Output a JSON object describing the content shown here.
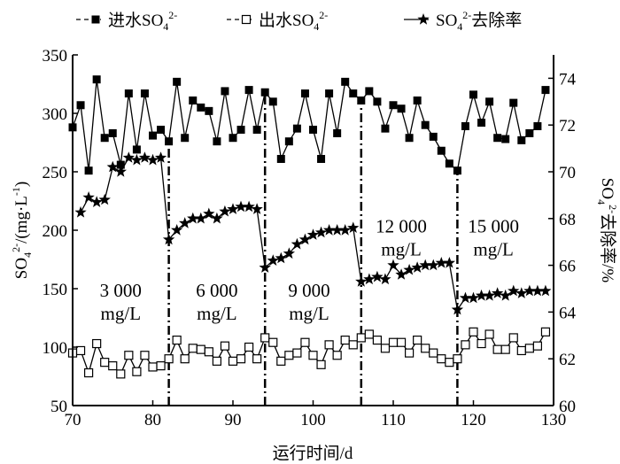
{
  "chart_data": {
    "type": "line",
    "xlabel": "运行时间/d",
    "ylabel_left": {
      "main": "SO",
      "sub": "4",
      "sup": "2-",
      "rest": "/(mg·L",
      "rest_sup": "-1",
      "close": ")"
    },
    "ylabel_right": {
      "main": "SO",
      "sub": "4",
      "sup": "2-",
      "rest": "去除率/%"
    },
    "xlim": [
      70,
      130
    ],
    "ylim_left": [
      50,
      350
    ],
    "ylim_right": [
      60,
      75
    ],
    "x_ticks": [
      "70",
      "80",
      "90",
      "100",
      "110",
      "120",
      "130"
    ],
    "y_left_ticks": [
      "50",
      "100",
      "150",
      "200",
      "250",
      "300",
      "350"
    ],
    "y_right_ticks": [
      "60",
      "62",
      "64",
      "66",
      "68",
      "70",
      "72",
      "74"
    ],
    "phase_boundaries": [
      82,
      94,
      106,
      118
    ],
    "annotations": [
      {
        "line1": "3 000",
        "line2": "mg/L",
        "x": 76,
        "y": 143
      },
      {
        "line1": "6 000",
        "line2": "mg/L",
        "x": 88,
        "y": 143
      },
      {
        "line1": "9 000",
        "line2": "mg/L",
        "x": 99.5,
        "y": 143
      },
      {
        "line1": "12 000",
        "line2": "mg/L",
        "x": 111,
        "y": 198
      },
      {
        "line1": "15 000",
        "line2": "mg/L",
        "x": 122.5,
        "y": 198
      }
    ],
    "legend": [
      {
        "name": "进水SO",
        "sub": "4",
        "sup": "2-",
        "marker": "filled-square"
      },
      {
        "name": "出水SO",
        "sub": "4",
        "sup": "2-",
        "marker": "open-square"
      },
      {
        "name": "SO",
        "sub": "4",
        "sup": "2-",
        "after": "去除率",
        "marker": "star"
      }
    ],
    "legend_placement": "top",
    "series": [
      {
        "name": "进水SO4 2-",
        "axis": "left",
        "x_start": 70,
        "values": [
          288,
          307,
          251,
          329,
          279,
          283,
          256,
          317,
          269,
          317,
          281,
          286,
          276,
          327,
          279,
          311,
          305,
          302,
          276,
          319,
          279,
          286,
          320,
          286,
          318,
          310,
          261,
          276,
          287,
          317,
          286,
          261,
          317,
          283,
          327,
          317,
          311,
          319,
          310,
          287,
          307,
          304,
          279,
          311,
          290,
          280,
          268,
          257,
          251,
          289,
          316,
          292,
          310,
          279,
          278,
          309,
          277,
          283,
          289,
          320
        ]
      },
      {
        "name": "出水SO4 2-",
        "axis": "left",
        "x_start": 70,
        "values": [
          95,
          97,
          78,
          103,
          87,
          84,
          77,
          93,
          79,
          93,
          83,
          84,
          90,
          106,
          90,
          99,
          98,
          96,
          88,
          101,
          88,
          90,
          100,
          90,
          108,
          104,
          88,
          93,
          95,
          104,
          93,
          85,
          102,
          93,
          106,
          102,
          108,
          111,
          106,
          99,
          104,
          104,
          95,
          106,
          99,
          95,
          90,
          87,
          90,
          102,
          113,
          103,
          111,
          98,
          98,
          108,
          97,
          99,
          101,
          113
        ]
      },
      {
        "name": "SO4 2-去除率",
        "axis": "right",
        "x_start": 71,
        "values": [
          68.26,
          68.9,
          68.7,
          68.8,
          70.2,
          70.0,
          70.6,
          70.5,
          70.6,
          70.5,
          70.6,
          67.1,
          67.5,
          67.8,
          68.0,
          68.0,
          68.2,
          68.0,
          68.3,
          68.4,
          68.5,
          68.5,
          68.4,
          65.9,
          66.2,
          66.3,
          66.5,
          66.9,
          67.1,
          67.3,
          67.4,
          67.5,
          67.5,
          67.5,
          67.6,
          65.3,
          65.4,
          65.5,
          65.4,
          66.0,
          65.6,
          65.8,
          65.9,
          66.0,
          66.0,
          66.1,
          66.1,
          64.1,
          64.6,
          64.6,
          64.7,
          64.7,
          64.8,
          64.7,
          64.9,
          64.8,
          64.9,
          64.9,
          64.9
        ]
      }
    ]
  }
}
